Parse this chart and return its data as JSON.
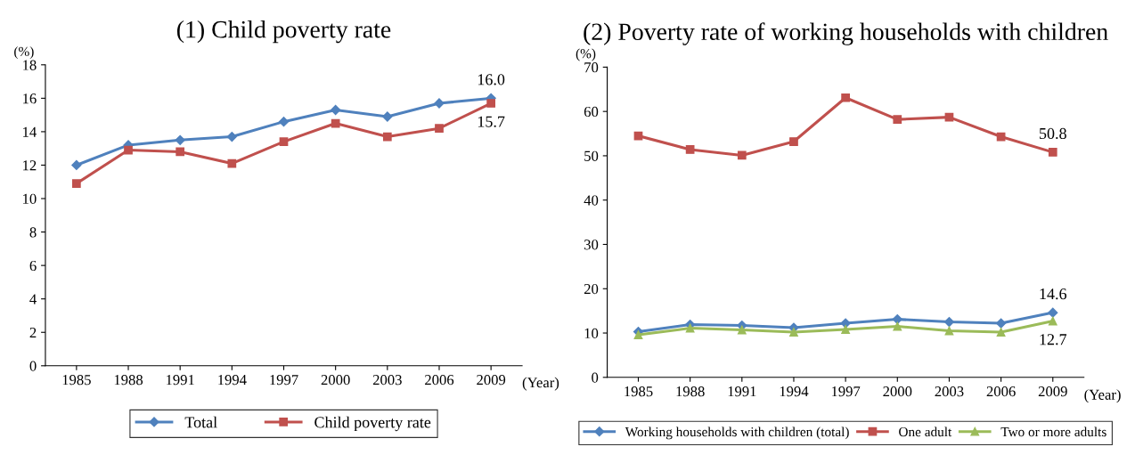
{
  "chart_data": [
    {
      "type": "line",
      "title": "(1) Child poverty rate",
      "ylabel": "(%)",
      "xlabel": "(Year)",
      "categories": [
        "1985",
        "1988",
        "1991",
        "1994",
        "1997",
        "2000",
        "2003",
        "2006",
        "2009"
      ],
      "series": [
        {
          "name": "Total",
          "color": "#4f81bd",
          "marker": "diamond",
          "values": [
            12.0,
            13.2,
            13.5,
            13.7,
            14.6,
            15.3,
            14.9,
            15.7,
            16.0
          ]
        },
        {
          "name": "Child poverty rate",
          "color": "#c0504d",
          "marker": "square",
          "values": [
            10.9,
            12.9,
            12.8,
            12.1,
            13.4,
            14.5,
            13.7,
            14.2,
            15.7
          ]
        }
      ],
      "annotations": [
        {
          "text": "16.0",
          "x": "2009",
          "y": 16.0
        },
        {
          "text": "15.7",
          "x": "2009",
          "y": 15.7
        }
      ],
      "ylim": [
        0,
        18
      ],
      "yticks": [
        0,
        2,
        4,
        6,
        8,
        10,
        12,
        14,
        16,
        18
      ],
      "grid": false,
      "legend": "bottom"
    },
    {
      "type": "line",
      "title": "(2) Poverty rate of working households with children",
      "ylabel": "(%)",
      "xlabel": "(Year)",
      "categories": [
        "1985",
        "1988",
        "1991",
        "1994",
        "1997",
        "2000",
        "2003",
        "2006",
        "2009"
      ],
      "series": [
        {
          "name": "Working households with children (total)",
          "color": "#4f81bd",
          "marker": "diamond",
          "values": [
            10.3,
            11.9,
            11.7,
            11.2,
            12.2,
            13.1,
            12.5,
            12.2,
            14.6
          ]
        },
        {
          "name": "One adult",
          "color": "#c0504d",
          "marker": "square",
          "values": [
            54.5,
            51.4,
            50.1,
            53.2,
            63.1,
            58.2,
            58.7,
            54.3,
            50.8
          ]
        },
        {
          "name": "Two or more adults",
          "color": "#9bbb59",
          "marker": "triangle",
          "values": [
            9.6,
            11.1,
            10.7,
            10.2,
            10.8,
            11.5,
            10.5,
            10.2,
            12.7
          ]
        }
      ],
      "annotations": [
        {
          "text": "50.8",
          "x": "2009",
          "y": 50.8
        },
        {
          "text": "14.6",
          "x": "2009",
          "y": 14.6
        },
        {
          "text": "12.7",
          "x": "2009",
          "y": 12.7
        }
      ],
      "ylim": [
        0,
        70
      ],
      "yticks": [
        0,
        10,
        20,
        30,
        40,
        50,
        60,
        70
      ],
      "grid": false,
      "legend": "bottom"
    }
  ]
}
